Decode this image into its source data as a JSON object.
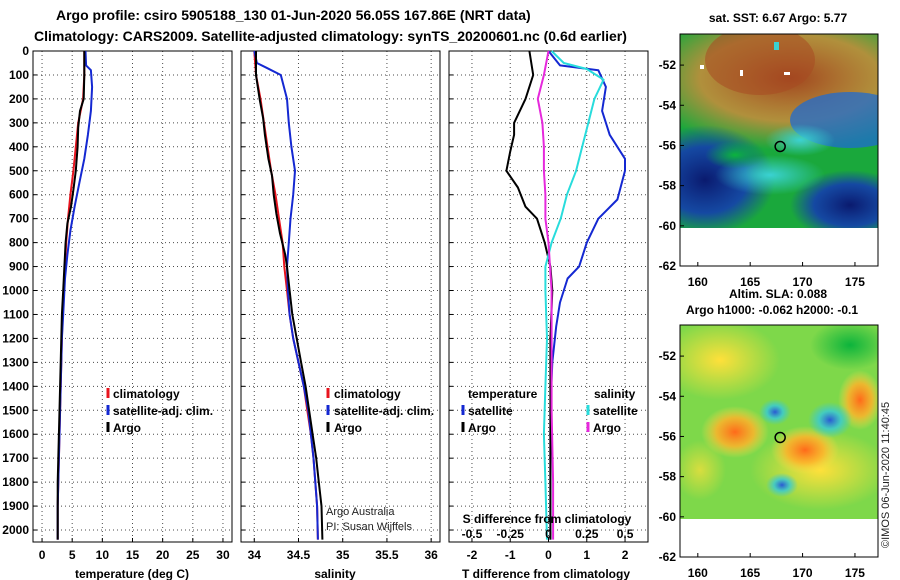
{
  "header": {
    "title_line1": "Argo profile: csiro 5905188_130 01-Jun-2020 56.05S 167.86E (NRT data)",
    "title_line2": "Climatology: CARS2009. Satellite-adjusted climatology: synTS_20200601.nc (0.6d earlier)"
  },
  "colors": {
    "climatology": "#e8141e",
    "satellite_adj": "#1428d2",
    "argo": "#000000",
    "t_diff": "#000000",
    "s_diff_sat": "#28dcdc",
    "s_diff_argo": "#e628dc"
  },
  "depth_axis": {
    "ticks": [
      "0",
      "100",
      "200",
      "300",
      "400",
      "500",
      "600",
      "700",
      "800",
      "900",
      "1000",
      "1100",
      "1200",
      "1300",
      "1400",
      "1500",
      "1600",
      "1700",
      "1800",
      "1900",
      "2000"
    ],
    "ylim": [
      0,
      2050
    ]
  },
  "chart_data": [
    {
      "id": "temperature",
      "type": "line",
      "xlabel": "temperature (deg C)",
      "xlim": [
        -1.5,
        31.5
      ],
      "xticks": [
        "0",
        "5",
        "10",
        "15",
        "20",
        "25",
        "30"
      ],
      "legend": {
        "climatology": "climatology",
        "satellite": "satellite-adj. clim.",
        "argo": "Argo"
      },
      "series": [
        {
          "name": "climatology",
          "color_key": "climatology",
          "points": [
            [
              7.0,
              0
            ],
            [
              7.0,
              100
            ],
            [
              6.8,
              200
            ],
            [
              6.0,
              300
            ],
            [
              5.6,
              400
            ],
            [
              5.2,
              500
            ],
            [
              4.7,
              600
            ],
            [
              4.3,
              700
            ],
            [
              4.0,
              800
            ],
            [
              3.8,
              900
            ],
            [
              3.6,
              1000
            ],
            [
              3.4,
              1100
            ],
            [
              3.3,
              1200
            ],
            [
              3.2,
              1300
            ],
            [
              3.1,
              1400
            ],
            [
              3.0,
              1500
            ],
            [
              2.9,
              1600
            ],
            [
              2.8,
              1700
            ],
            [
              2.7,
              1800
            ],
            [
              2.6,
              1900
            ],
            [
              2.6,
              2040
            ]
          ]
        },
        {
          "name": "satellite-adj. clim.",
          "color_key": "satellite_adj",
          "points": [
            [
              7.2,
              0
            ],
            [
              7.3,
              60
            ],
            [
              8.1,
              80
            ],
            [
              8.3,
              150
            ],
            [
              8.1,
              250
            ],
            [
              7.6,
              350
            ],
            [
              7.0,
              450
            ],
            [
              6.2,
              550
            ],
            [
              5.4,
              650
            ],
            [
              4.7,
              750
            ],
            [
              4.2,
              850
            ],
            [
              3.8,
              950
            ],
            [
              3.5,
              1100
            ],
            [
              3.3,
              1200
            ],
            [
              3.1,
              1400
            ],
            [
              2.9,
              1600
            ],
            [
              2.8,
              1700
            ],
            [
              2.7,
              1800
            ],
            [
              2.6,
              1900
            ],
            [
              2.6,
              2040
            ]
          ]
        },
        {
          "name": "Argo",
          "color_key": "argo",
          "points": [
            [
              7.0,
              0
            ],
            [
              7.0,
              100
            ],
            [
              6.9,
              200
            ],
            [
              6.3,
              250
            ],
            [
              6.0,
              320
            ],
            [
              5.9,
              400
            ],
            [
              5.6,
              500
            ],
            [
              5.2,
              580
            ],
            [
              4.8,
              650
            ],
            [
              4.2,
              720
            ],
            [
              3.9,
              800
            ],
            [
              3.7,
              900
            ],
            [
              3.5,
              1000
            ],
            [
              3.3,
              1100
            ],
            [
              3.2,
              1200
            ],
            [
              3.1,
              1300
            ],
            [
              3.0,
              1400
            ],
            [
              2.9,
              1500
            ],
            [
              2.8,
              1600
            ],
            [
              2.7,
              1700
            ],
            [
              2.6,
              1800
            ],
            [
              2.6,
              1900
            ],
            [
              2.6,
              2040
            ]
          ]
        }
      ]
    },
    {
      "id": "salinity",
      "type": "line",
      "xlabel": "salinity",
      "xlim": [
        33.85,
        36.1
      ],
      "xticks": [
        "34",
        "34.5",
        "35",
        "35.5",
        "36"
      ],
      "legend": {
        "climatology": "climatology",
        "satellite": "satellite-adj. clim.",
        "argo": "Argo"
      },
      "annotation": [
        "Argo Australia",
        "PI: Susan Wijffels"
      ],
      "series": [
        {
          "name": "climatology",
          "color_key": "climatology",
          "points": [
            [
              34.0,
              0
            ],
            [
              34.02,
              100
            ],
            [
              34.07,
              200
            ],
            [
              34.11,
              300
            ],
            [
              34.15,
              400
            ],
            [
              34.19,
              500
            ],
            [
              34.24,
              600
            ],
            [
              34.28,
              700
            ],
            [
              34.32,
              800
            ],
            [
              34.34,
              900
            ],
            [
              34.37,
              1000
            ],
            [
              34.4,
              1100
            ],
            [
              34.44,
              1200
            ],
            [
              34.5,
              1300
            ],
            [
              34.56,
              1400
            ],
            [
              34.6,
              1500
            ],
            [
              34.64,
              1600
            ],
            [
              34.67,
              1700
            ],
            [
              34.69,
              1800
            ],
            [
              34.71,
              1900
            ],
            [
              34.72,
              2040
            ]
          ]
        },
        {
          "name": "satellite-adj. clim.",
          "color_key": "satellite_adj",
          "points": [
            [
              34.0,
              0
            ],
            [
              34.03,
              50
            ],
            [
              34.14,
              70
            ],
            [
              34.3,
              100
            ],
            [
              34.37,
              200
            ],
            [
              34.39,
              300
            ],
            [
              34.42,
              400
            ],
            [
              34.46,
              500
            ],
            [
              34.44,
              600
            ],
            [
              34.41,
              700
            ],
            [
              34.39,
              800
            ],
            [
              34.37,
              900
            ],
            [
              34.38,
              1000
            ],
            [
              34.4,
              1100
            ],
            [
              34.44,
              1200
            ],
            [
              34.5,
              1300
            ],
            [
              34.56,
              1400
            ],
            [
              34.61,
              1500
            ],
            [
              34.64,
              1600
            ],
            [
              34.67,
              1700
            ],
            [
              34.69,
              1800
            ],
            [
              34.71,
              1900
            ],
            [
              34.72,
              2040
            ]
          ]
        },
        {
          "name": "Argo",
          "color_key": "argo",
          "points": [
            [
              34.02,
              0
            ],
            [
              34.02,
              100
            ],
            [
              34.06,
              200
            ],
            [
              34.1,
              280
            ],
            [
              34.12,
              350
            ],
            [
              34.16,
              450
            ],
            [
              34.2,
              520
            ],
            [
              34.22,
              600
            ],
            [
              34.25,
              680
            ],
            [
              34.29,
              760
            ],
            [
              34.35,
              850
            ],
            [
              34.37,
              900
            ],
            [
              34.4,
              1000
            ],
            [
              34.43,
              1100
            ],
            [
              34.48,
              1200
            ],
            [
              34.53,
              1300
            ],
            [
              34.58,
              1400
            ],
            [
              34.62,
              1500
            ],
            [
              34.66,
              1600
            ],
            [
              34.7,
              1700
            ],
            [
              34.73,
              1800
            ],
            [
              34.76,
              1900
            ],
            [
              34.77,
              2040
            ]
          ]
        }
      ]
    },
    {
      "id": "difference",
      "type": "line",
      "xlabel": "T difference from climatology",
      "xlabel_top": "S difference from climatology",
      "xlim": [
        -2.6,
        2.6
      ],
      "xticks": [
        "-2",
        "-1",
        "0",
        "1",
        "2"
      ],
      "s_ticks": [
        "-0.5",
        "-0.25",
        "0",
        "0.25",
        "0.5"
      ],
      "legend": {
        "temperature": "temperature",
        "salinity": "salinity",
        "t_sat": "satellite",
        "t_argo": "Argo",
        "s_sat": "satellite",
        "s_argo": "Argo"
      },
      "series": [
        {
          "name": "T satellite",
          "color_key": "satellite_adj",
          "units": "degC",
          "points": [
            [
              0.0,
              0
            ],
            [
              0.3,
              60
            ],
            [
              1.3,
              80
            ],
            [
              1.5,
              150
            ],
            [
              1.4,
              250
            ],
            [
              1.6,
              350
            ],
            [
              2.0,
              450
            ],
            [
              2.0,
              500
            ],
            [
              1.9,
              560
            ],
            [
              1.8,
              620
            ],
            [
              1.3,
              700
            ],
            [
              1.0,
              800
            ],
            [
              0.8,
              900
            ],
            [
              0.5,
              950
            ],
            [
              0.3,
              1050
            ],
            [
              0.2,
              1150
            ],
            [
              0.1,
              1300
            ],
            [
              0.05,
              1500
            ],
            [
              0.05,
              1700
            ],
            [
              0.05,
              2040
            ]
          ]
        },
        {
          "name": "T Argo",
          "color_key": "t_diff",
          "units": "degC",
          "points": [
            [
              -0.5,
              0
            ],
            [
              -0.4,
              100
            ],
            [
              -0.6,
              200
            ],
            [
              -0.9,
              300
            ],
            [
              -0.9,
              350
            ],
            [
              -1.0,
              420
            ],
            [
              -1.1,
              500
            ],
            [
              -0.8,
              570
            ],
            [
              -0.6,
              650
            ],
            [
              -0.3,
              700
            ],
            [
              -0.1,
              800
            ],
            [
              0.05,
              900
            ],
            [
              0.1,
              1000
            ],
            [
              0.05,
              1200
            ],
            [
              0.05,
              1500
            ],
            [
              0.05,
              1800
            ],
            [
              0.05,
              2040
            ]
          ]
        },
        {
          "name": "S satellite",
          "color_key": "s_diff_sat",
          "units": "psu",
          "points": [
            [
              0.02,
              0
            ],
            [
              0.1,
              50
            ],
            [
              0.25,
              75
            ],
            [
              0.36,
              120
            ],
            [
              0.3,
              200
            ],
            [
              0.26,
              300
            ],
            [
              0.22,
              400
            ],
            [
              0.18,
              500
            ],
            [
              0.12,
              600
            ],
            [
              0.08,
              700
            ],
            [
              0.02,
              800
            ],
            [
              -0.02,
              900
            ],
            [
              -0.02,
              1000
            ],
            [
              -0.01,
              1200
            ],
            [
              -0.02,
              1400
            ],
            [
              -0.03,
              1600
            ],
            [
              -0.02,
              1800
            ],
            [
              -0.01,
              2040
            ]
          ]
        },
        {
          "name": "S Argo",
          "color_key": "s_diff_argo",
          "units": "psu",
          "points": [
            [
              0.0,
              0
            ],
            [
              -0.03,
              100
            ],
            [
              -0.07,
              200
            ],
            [
              -0.04,
              300
            ],
            [
              -0.03,
              400
            ],
            [
              -0.03,
              500
            ],
            [
              -0.02,
              600
            ],
            [
              -0.02,
              700
            ],
            [
              0.0,
              800
            ],
            [
              0.01,
              900
            ],
            [
              0.02,
              1000
            ],
            [
              0.02,
              1200
            ],
            [
              0.02,
              1500
            ],
            [
              0.03,
              1800
            ],
            [
              0.03,
              2040
            ]
          ]
        }
      ]
    }
  ],
  "maps": {
    "sst": {
      "title": "sat. SST: 6.67 Argo: 5.77",
      "yticks": [
        "-52",
        "-54",
        "-56",
        "-58",
        "-60",
        "-62"
      ],
      "xticks": [
        "160",
        "165",
        "170",
        "175"
      ]
    },
    "sla": {
      "title_line1": "Altim. SLA: 0.088",
      "title_line2": "Argo h1000: -0.062 h2000: -0.1",
      "yticks": [
        "-52",
        "-54",
        "-56",
        "-58",
        "-60",
        "-62"
      ],
      "xticks": [
        "160",
        "165",
        "170",
        "175"
      ]
    },
    "profile_position": {
      "lon": 167.86,
      "lat": -56.05
    },
    "credit": "©IMOS 06-Jun-2020 11:40:45"
  }
}
